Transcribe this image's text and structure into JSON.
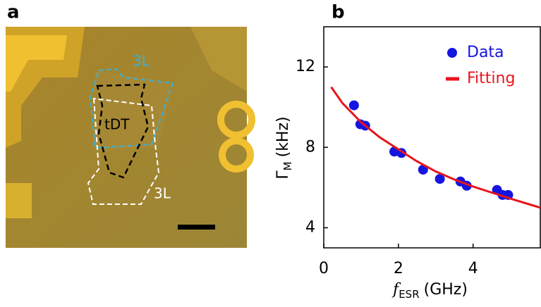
{
  "panel_labels": [
    "a",
    "b"
  ],
  "image": {
    "labels": [
      "3L",
      "tDT",
      "3L"
    ]
  },
  "chart_data": {
    "type": "scatter",
    "xlabel": [
      "f",
      "ESR",
      "(GHz)"
    ],
    "ylabel": [
      "Γ",
      "M",
      "(kHz)"
    ],
    "xlim": [
      0,
      5.8
    ],
    "ylim": [
      3,
      14
    ],
    "xticks": [
      0,
      2,
      4
    ],
    "yticks": [
      4,
      8,
      12
    ],
    "legend": "upper right",
    "series": [
      {
        "name": "Data",
        "type": "scatter",
        "color": "#1515e0",
        "x": [
          0.81,
          0.98,
          1.11,
          1.89,
          2.08,
          2.66,
          3.11,
          3.66,
          3.83,
          4.64,
          4.79,
          4.94
        ],
        "values": [
          10.09,
          9.15,
          9.08,
          7.79,
          7.72,
          6.89,
          6.43,
          6.3,
          6.09,
          5.88,
          5.63,
          5.63
        ]
      },
      {
        "name": "Fitting",
        "type": "line",
        "color": "#e8141c",
        "x": [
          0.2,
          0.5,
          1,
          1.5,
          2,
          2.5,
          3,
          3.5,
          4,
          4.5,
          5,
          5.8
        ],
        "values": [
          11.0,
          10.2,
          9.25,
          8.5,
          7.9,
          7.3,
          6.8,
          6.4,
          6.05,
          5.75,
          5.45,
          5.0
        ]
      }
    ]
  }
}
